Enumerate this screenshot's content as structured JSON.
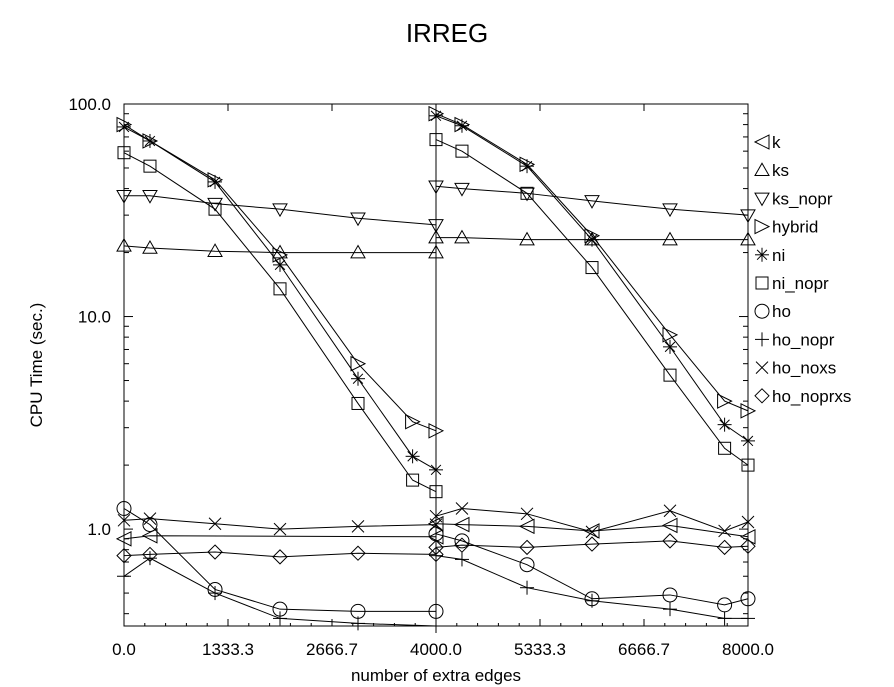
{
  "chart_data": {
    "type": "line",
    "title": "IRREG",
    "xlabel": "number of extra edges",
    "ylabel": "CPU Time (sec.)",
    "yscale": "log",
    "xlim": [
      0,
      8000
    ],
    "ylim": [
      0.35,
      100
    ],
    "x_ticks": [
      "0.0",
      "1333.3",
      "2666.7",
      "4000.0",
      "5333.3",
      "6666.7",
      "8000.0"
    ],
    "y_ticks": [
      "1.0",
      "10.0",
      "100.0"
    ],
    "legend_position": "right",
    "grid": false,
    "panels": [
      {
        "series": [
          {
            "name": "k",
            "marker": "triangle-left",
            "x": [
              0,
              333,
              4000
            ],
            "y": [
              0.9,
              0.93,
              0.92
            ]
          },
          {
            "name": "ks",
            "marker": "triangle-up",
            "x": [
              0,
              333,
              1167,
              2000,
              3000,
              4000
            ],
            "y": [
              21.5,
              21,
              20.3,
              20,
              20,
              20
            ]
          },
          {
            "name": "ks_nopr",
            "marker": "triangle-down",
            "x": [
              0,
              333,
              1167,
              2000,
              3000,
              4000
            ],
            "y": [
              37,
              37,
              34,
              32,
              29,
              27
            ]
          },
          {
            "name": "hybrid",
            "marker": "triangle-right",
            "x": [
              0,
              333,
              1167,
              2000,
              3000,
              3700,
              4000
            ],
            "y": [
              80,
              67,
              44,
              19.5,
              6,
              3.2,
              2.9
            ]
          },
          {
            "name": "ni",
            "marker": "asterisk",
            "x": [
              0,
              333,
              1167,
              2000,
              3000,
              3700,
              4000
            ],
            "y": [
              78,
              67,
              43,
              17.5,
              5.1,
              2.2,
              1.9
            ]
          },
          {
            "name": "ni_nopr",
            "marker": "square",
            "x": [
              0,
              333,
              1167,
              2000,
              3000,
              3700,
              4000
            ],
            "y": [
              59,
              51,
              32,
              13.5,
              3.9,
              1.7,
              1.5
            ]
          },
          {
            "name": "ho",
            "marker": "circle",
            "x": [
              0,
              333,
              1167,
              2000,
              3000,
              4000
            ],
            "y": [
              1.25,
              1.05,
              0.52,
              0.42,
              0.41,
              0.41
            ]
          },
          {
            "name": "ho_nopr",
            "marker": "plus",
            "x": [
              0,
              333,
              1167,
              2000,
              3000,
              4000
            ],
            "y": [
              0.6,
              0.73,
              0.5,
              0.38,
              0.36,
              0.35
            ]
          },
          {
            "name": "ho_noxs",
            "marker": "cross",
            "x": [
              0,
              333,
              1167,
              2000,
              3000,
              4000
            ],
            "y": [
              1.1,
              1.12,
              1.06,
              1.0,
              1.03,
              1.05
            ]
          },
          {
            "name": "ho_noprxs",
            "marker": "diamond",
            "x": [
              0,
              333,
              1167,
              2000,
              3000,
              4000
            ],
            "y": [
              0.75,
              0.76,
              0.78,
              0.74,
              0.77,
              0.76
            ]
          }
        ]
      },
      {
        "series": [
          {
            "name": "k",
            "marker": "triangle-left",
            "x": [
              4000,
              4333,
              5167,
              6000,
              7000,
              8000
            ],
            "y": [
              1.06,
              1.05,
              1.03,
              0.98,
              1.04,
              0.92
            ]
          },
          {
            "name": "ks",
            "marker": "triangle-up",
            "x": [
              4000,
              4333,
              5167,
              6000,
              7000,
              8000
            ],
            "y": [
              23.5,
              23.5,
              23,
              23,
              23,
              23
            ]
          },
          {
            "name": "ks_nopr",
            "marker": "triangle-down",
            "x": [
              4000,
              4333,
              5167,
              6000,
              7000,
              8000
            ],
            "y": [
              41,
              40,
              38,
              35,
              32,
              30
            ]
          },
          {
            "name": "hybrid",
            "marker": "triangle-right",
            "x": [
              4000,
              4333,
              5167,
              6000,
              7000,
              7700,
              8000
            ],
            "y": [
              90,
              80,
              52,
              24,
              8.2,
              4,
              3.6
            ]
          },
          {
            "name": "ni",
            "marker": "asterisk",
            "x": [
              4000,
              4333,
              5167,
              6000,
              7000,
              7700,
              8000
            ],
            "y": [
              88,
              79,
              51,
              23,
              7.2,
              3.1,
              2.6
            ]
          },
          {
            "name": "ni_nopr",
            "marker": "square",
            "x": [
              4000,
              4333,
              5167,
              6000,
              7000,
              7700,
              8000
            ],
            "y": [
              68,
              60,
              38,
              17,
              5.3,
              2.4,
              2.0
            ]
          },
          {
            "name": "ho",
            "marker": "circle",
            "x": [
              4000,
              4333,
              5167,
              6000,
              7000,
              7700,
              8000
            ],
            "y": [
              0.95,
              0.88,
              0.68,
              0.47,
              0.49,
              0.44,
              0.47
            ]
          },
          {
            "name": "ho_nopr",
            "marker": "plus",
            "x": [
              4000,
              4333,
              5167,
              6000,
              7000,
              7700,
              8000
            ],
            "y": [
              0.75,
              0.72,
              0.53,
              0.46,
              0.42,
              0.38,
              0.38
            ]
          },
          {
            "name": "ho_noxs",
            "marker": "cross",
            "x": [
              4000,
              4333,
              5167,
              6000,
              7000,
              7700,
              8000
            ],
            "y": [
              1.15,
              1.25,
              1.18,
              0.97,
              1.22,
              0.98,
              1.08
            ]
          },
          {
            "name": "ho_noprxs",
            "marker": "diamond",
            "x": [
              4000,
              4333,
              5167,
              6000,
              7000,
              7700,
              8000
            ],
            "y": [
              0.82,
              0.84,
              0.82,
              0.85,
              0.88,
              0.82,
              0.83
            ]
          }
        ]
      }
    ]
  }
}
